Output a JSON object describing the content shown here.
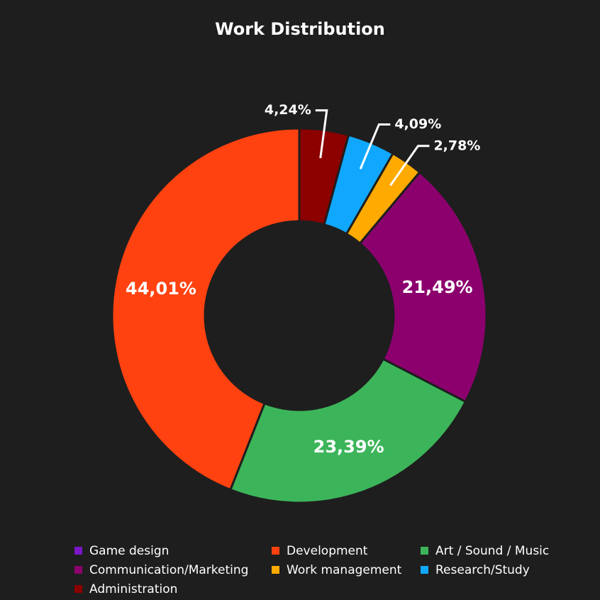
{
  "chart_data": {
    "type": "donut",
    "title": "Work Distribution",
    "categories": [
      "Game design",
      "Development",
      "Art / Sound / Music",
      "Communication/Marketing",
      "Work management",
      "Research/Study",
      "Administration"
    ],
    "values": [
      0,
      44.01,
      23.39,
      21.49,
      2.78,
      4.09,
      4.24
    ],
    "value_labels": [
      null,
      "44,01%",
      "23,39%",
      "21,49%",
      "2,78%",
      "4,09%",
      "4,24%"
    ],
    "colors": [
      "#7b16c8",
      "#ff4210",
      "#3cb55a",
      "#8c006e",
      "#ffaa00",
      "#10a8ff",
      "#8c0000"
    ],
    "legend": "bottom"
  }
}
